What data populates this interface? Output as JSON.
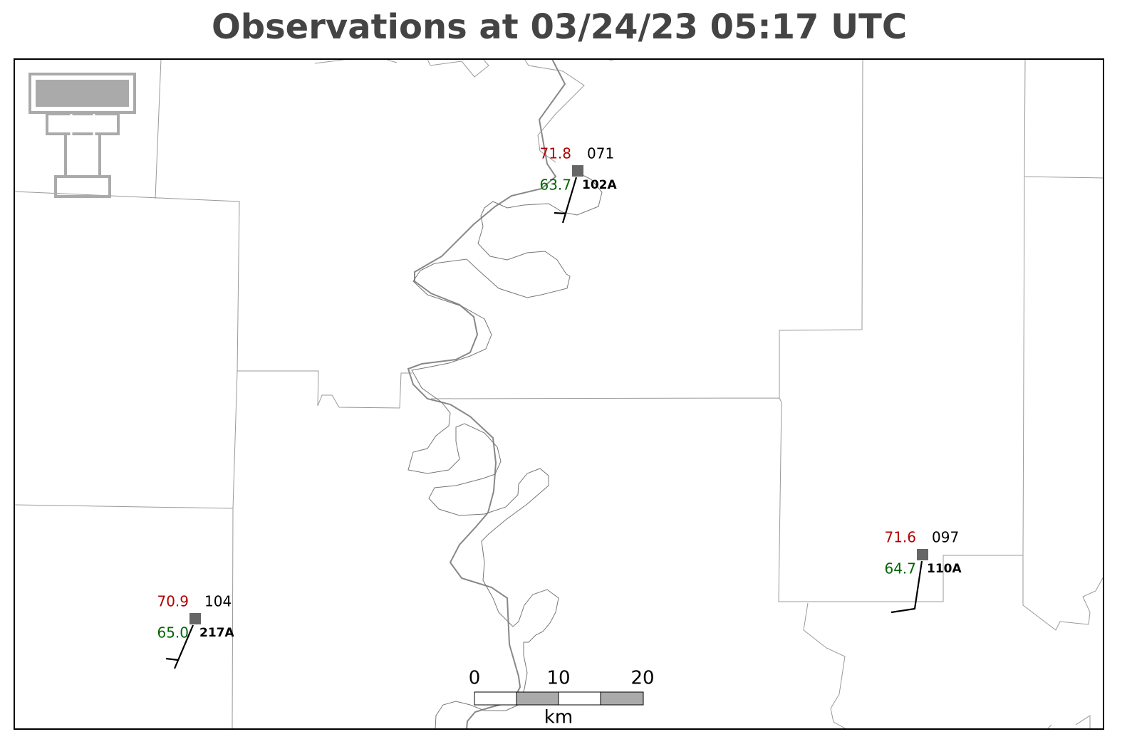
{
  "title": "Observations at 03/24/23 05:17 UTC",
  "stations": [
    {
      "id": "102A",
      "temperature": "71.8",
      "dewpoint": "63.7",
      "pressure": "071"
    },
    {
      "id": "110A",
      "temperature": "71.6",
      "dewpoint": "64.7",
      "pressure": "097"
    },
    {
      "id": "217A",
      "temperature": "70.9",
      "dewpoint": "65.0",
      "pressure": "104"
    }
  ],
  "scale_bar": {
    "labels": [
      "0",
      "10",
      "20"
    ],
    "unit": "km"
  }
}
